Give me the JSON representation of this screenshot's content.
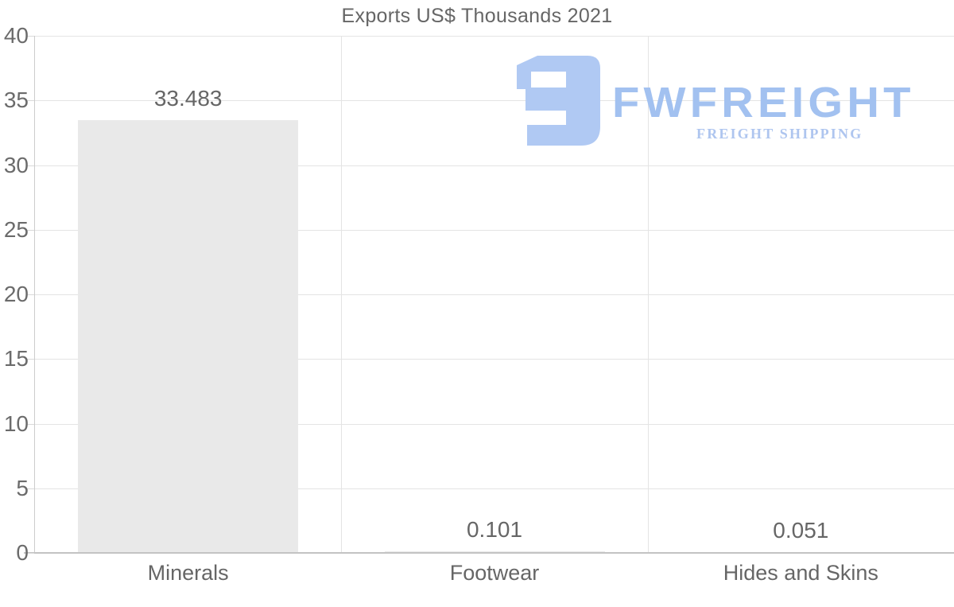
{
  "chart_data": {
    "type": "bar",
    "title": "Exports US$ Thousands 2021",
    "categories": [
      "Minerals",
      "Footwear",
      "Hides and Skins"
    ],
    "values": [
      33.483,
      0.101,
      0.051
    ],
    "value_labels": [
      "33.483",
      "0.101",
      "0.051"
    ],
    "xlabel": "",
    "ylabel": "",
    "ylim": [
      0,
      40
    ],
    "y_ticks": [
      0,
      5,
      10,
      15,
      20,
      25,
      30,
      35,
      40
    ],
    "grid": true,
    "legend": "none",
    "bar_color": "#e9e9e9",
    "gridline_color": "#e4e4e4",
    "axis_line_color": "#c3c3c3",
    "text_color": "#666666"
  },
  "watermark": {
    "brand": "FWFREIGHT",
    "tagline": "FREIGHT SHIPPING",
    "brand_color": "#a2c1f0",
    "icon_color": "#b0c9f3",
    "icon": "freight-logo-icon"
  }
}
